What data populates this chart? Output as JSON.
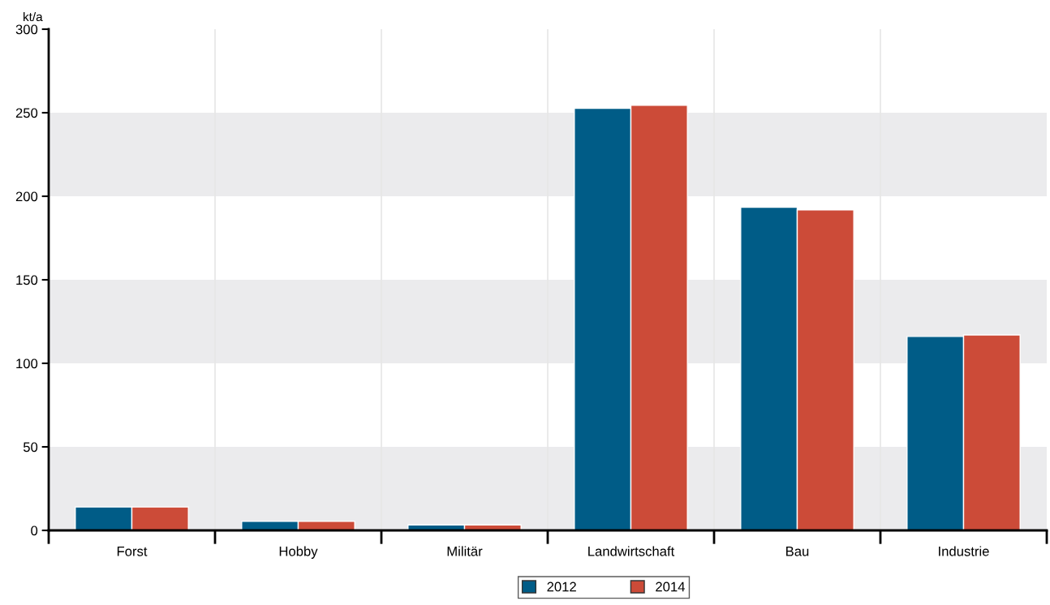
{
  "chart_data": {
    "type": "bar",
    "ylabel": "kt/a",
    "categories": [
      "Forst",
      "Hobby",
      "Militär",
      "Landwirtschaft",
      "Bau",
      "Industrie"
    ],
    "series": [
      {
        "name": "2012",
        "color": "#005c87",
        "values": [
          14,
          5.4,
          3.3,
          252.7,
          193.4,
          116.1
        ]
      },
      {
        "name": "2014",
        "color": "#cc4b38",
        "values": [
          14,
          5.4,
          3.3,
          254.5,
          191.9,
          117
        ]
      }
    ],
    "ylim": [
      0,
      300
    ],
    "yticks": [
      0,
      50,
      100,
      150,
      200,
      250,
      300
    ],
    "grid": true,
    "legend": "bottom"
  }
}
